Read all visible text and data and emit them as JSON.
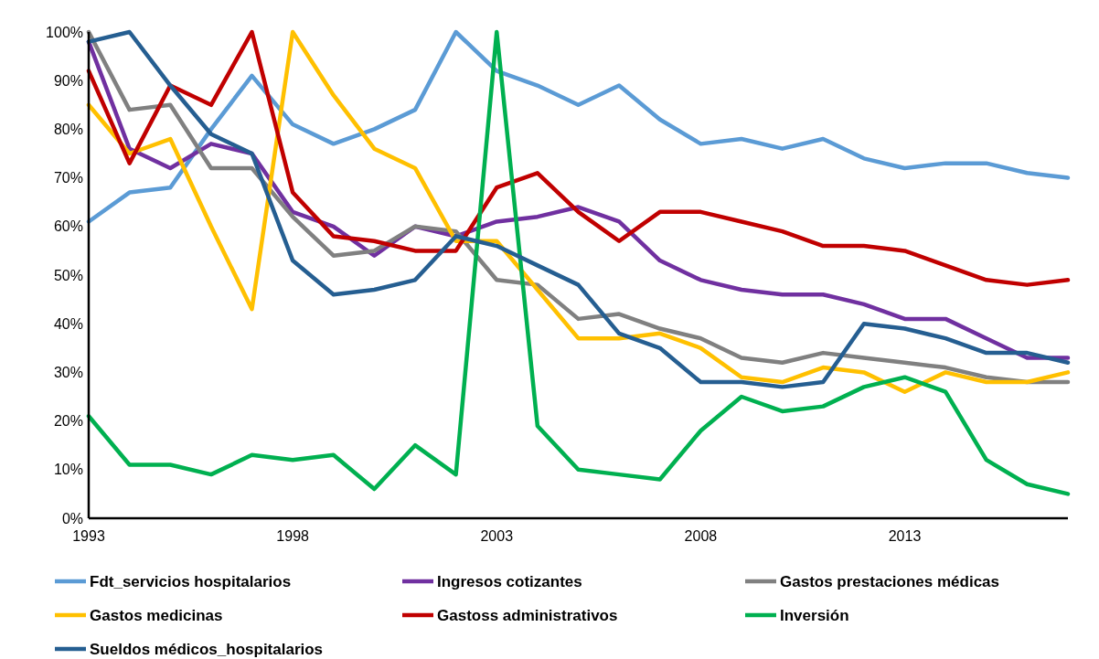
{
  "chart_data": {
    "type": "line",
    "x": [
      1993,
      1994,
      1995,
      1996,
      1997,
      1998,
      1999,
      2000,
      2001,
      2002,
      2003,
      2004,
      2005,
      2006,
      2007,
      2008,
      2009,
      2010,
      2011,
      2012,
      2013,
      2014,
      2015,
      2016,
      2017
    ],
    "xlim": [
      1993,
      2017
    ],
    "xticks": [
      1993,
      1998,
      2003,
      2008,
      2013
    ],
    "ylim": [
      0,
      100
    ],
    "yticks": [
      {
        "value": 0,
        "label": "0%"
      },
      {
        "value": 10,
        "label": "10%"
      },
      {
        "value": 20,
        "label": "20%"
      },
      {
        "value": 30,
        "label": "30%"
      },
      {
        "value": 40,
        "label": "40%"
      },
      {
        "value": 50,
        "label": "50%"
      },
      {
        "value": 60,
        "label": "60%"
      },
      {
        "value": 70,
        "label": "70%"
      },
      {
        "value": 80,
        "label": "80%"
      },
      {
        "value": 90,
        "label": "90%"
      },
      {
        "value": 100,
        "label": "100%"
      }
    ],
    "grid": false,
    "legend": "bottom",
    "marker": "none",
    "line_style": "solid",
    "series": [
      {
        "name": "Fdt_servicios hospitalarios",
        "color": "#5b9bd5",
        "values": [
          61,
          67,
          68,
          80,
          91,
          81,
          77,
          80,
          84,
          100,
          92,
          89,
          85,
          89,
          82,
          77,
          78,
          76,
          78,
          74,
          72,
          73,
          73,
          71,
          70
        ]
      },
      {
        "name": "Ingresos cotizantes",
        "color": "#7030a0",
        "values": [
          98,
          76,
          72,
          77,
          75,
          63,
          60,
          54,
          60,
          58,
          61,
          62,
          64,
          61,
          53,
          49,
          47,
          46,
          46,
          44,
          41,
          41,
          37,
          33,
          33
        ]
      },
      {
        "name": "Gastos prestaciones médicas",
        "color": "#808080",
        "values": [
          100,
          84,
          85,
          72,
          72,
          62,
          54,
          55,
          60,
          59,
          49,
          48,
          41,
          42,
          39,
          37,
          33,
          32,
          34,
          33,
          32,
          31,
          29,
          28,
          28
        ]
      },
      {
        "name": "Gastos medicinas",
        "color": "#ffc000",
        "values": [
          85,
          75,
          78,
          60,
          43,
          100,
          87,
          76,
          72,
          57,
          57,
          47,
          37,
          37,
          38,
          35,
          29,
          28,
          31,
          30,
          26,
          30,
          28,
          28,
          30
        ]
      },
      {
        "name": "Gastoss administrativos",
        "color": "#c00000",
        "values": [
          92,
          73,
          89,
          85,
          100,
          67,
          58,
          57,
          55,
          55,
          68,
          71,
          63,
          57,
          63,
          63,
          61,
          59,
          56,
          56,
          55,
          52,
          49,
          48,
          49
        ]
      },
      {
        "name": "Inversión",
        "color": "#00b050",
        "values": [
          21,
          11,
          11,
          9,
          13,
          12,
          13,
          6,
          15,
          9,
          100,
          19,
          10,
          9,
          8,
          18,
          25,
          22,
          23,
          27,
          29,
          26,
          12,
          7,
          5
        ]
      },
      {
        "name": "Sueldos médicos_hospitalarios",
        "color": "#255e91",
        "values": [
          98,
          100,
          89,
          79,
          75,
          53,
          46,
          47,
          49,
          58,
          56,
          52,
          48,
          38,
          35,
          28,
          28,
          27,
          28,
          40,
          39,
          37,
          34,
          34,
          32
        ]
      }
    ]
  }
}
